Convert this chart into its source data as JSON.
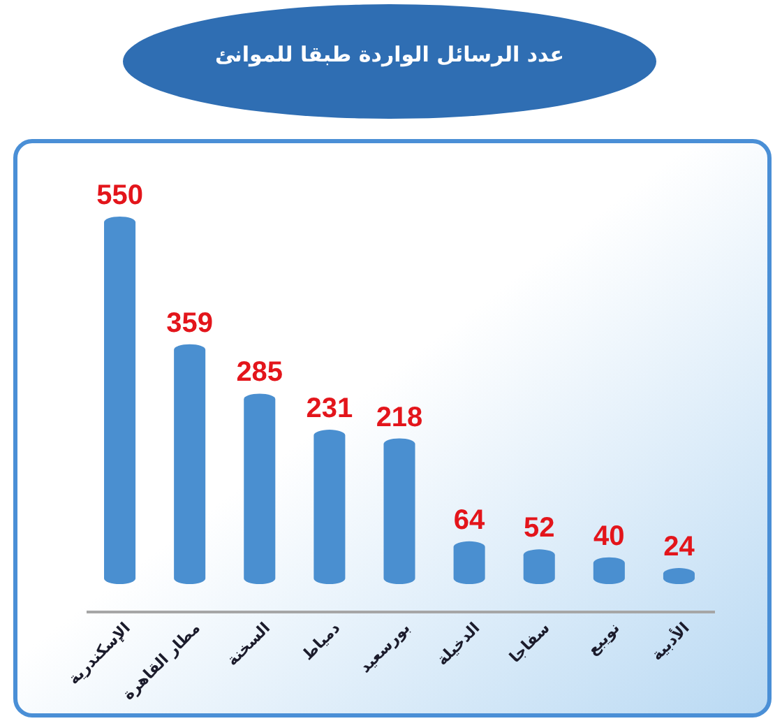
{
  "chart_data": {
    "type": "bar",
    "title": "عدد الرسائل الواردة طبقا للموانئ",
    "categories": [
      "الإسكندرية",
      "مطار القاهرة",
      "السخنة",
      "دمياط",
      "بورسعيد",
      "الدخيلة",
      "سفاجا",
      "نويبع",
      "الأدبية"
    ],
    "values": [
      550,
      359,
      285,
      231,
      218,
      64,
      52,
      40,
      24
    ],
    "color": "#4a8fd0",
    "data_labels": true
  }
}
